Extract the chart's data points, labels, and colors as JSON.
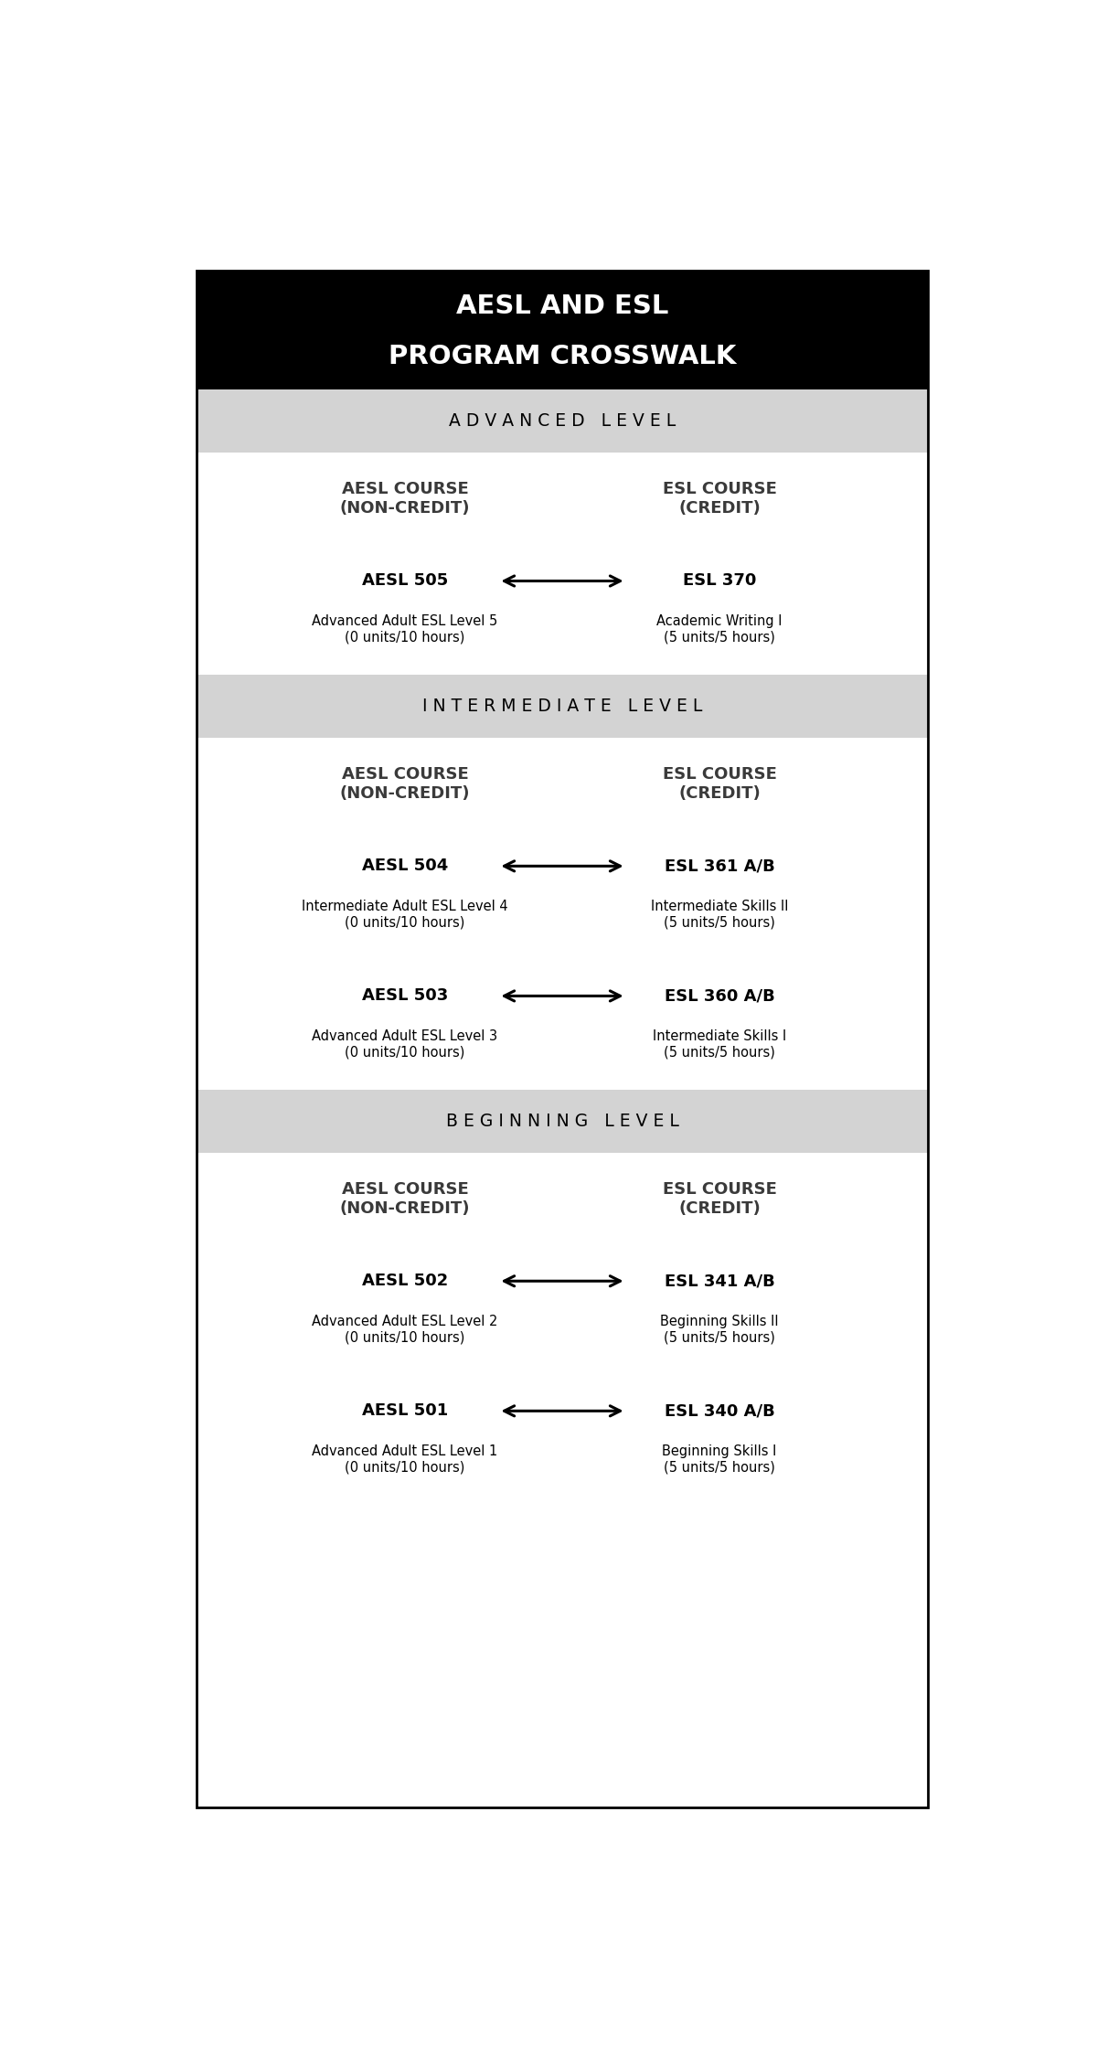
{
  "title_line1": "AESL AND ESL",
  "title_line2": "PROGRAM CROSSWALK",
  "title_bg": "#000000",
  "title_color": "#ffffff",
  "section_bg": "#d3d3d3",
  "body_bg": "#ffffff",
  "border_color": "#000000",
  "sections": [
    {
      "label": "A D V A N C E D   L E V E L",
      "col_header_left": "AESL COURSE\n(NON-CREDIT)",
      "col_header_right": "ESL COURSE\n(CREDIT)",
      "courses": [
        {
          "aesl_code": "AESL 505",
          "aesl_desc": "Advanced Adult ESL Level 5\n(0 units/10 hours)",
          "esl_code": "ESL 370",
          "esl_desc": "Academic Writing I\n(5 units/5 hours)",
          "arrow_up_aesl": false,
          "arrow_up_esl": false
        }
      ]
    },
    {
      "label": "I N T E R M E D I A T E   L E V E L",
      "col_header_left": "AESL COURSE\n(NON-CREDIT)",
      "col_header_right": "ESL COURSE\n(CREDIT)",
      "courses": [
        {
          "aesl_code": "AESL 504",
          "aesl_desc": "Intermediate Adult ESL Level 4\n(0 units/10 hours)",
          "esl_code": "ESL 361 A/B",
          "esl_desc": "Intermediate Skills II\n(5 units/5 hours)",
          "arrow_up_aesl": true,
          "arrow_up_esl": true
        },
        {
          "aesl_code": "AESL 503",
          "aesl_desc": "Advanced Adult ESL Level 3\n(0 units/10 hours)",
          "esl_code": "ESL 360 A/B",
          "esl_desc": "Intermediate Skills I\n(5 units/5 hours)",
          "arrow_up_aesl": false,
          "arrow_up_esl": false
        }
      ]
    },
    {
      "label": "B E G I N N I N G   L E V E L",
      "col_header_left": "AESL COURSE\n(NON-CREDIT)",
      "col_header_right": "ESL COURSE\n(CREDIT)",
      "courses": [
        {
          "aesl_code": "AESL 502",
          "aesl_desc": "Advanced Adult ESL Level 2\n(0 units/10 hours)",
          "esl_code": "ESL 341 A/B",
          "esl_desc": "Beginning Skills II\n(5 units/5 hours)",
          "arrow_up_aesl": true,
          "arrow_up_esl": true
        },
        {
          "aesl_code": "AESL 501",
          "aesl_desc": "Advanced Adult ESL Level 1\n(0 units/10 hours)",
          "esl_code": "ESL 340 A/B",
          "esl_desc": "Beginning Skills I\n(5 units/5 hours)",
          "arrow_up_aesl": false,
          "arrow_up_esl": false
        }
      ]
    }
  ]
}
